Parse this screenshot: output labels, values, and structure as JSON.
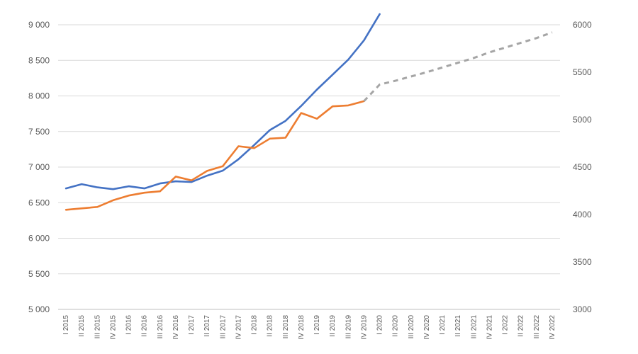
{
  "chart_data": {
    "type": "line",
    "title": "",
    "categories": [
      "I 2015",
      "II 2015",
      "III 2015",
      "IV 2015",
      "I 2016",
      "II 2016",
      "III 2016",
      "IV 2016",
      "I 2017",
      "II 2017",
      "III 2017",
      "IV 2017",
      "I 2018",
      "II 2018",
      "III 2018",
      "IV 2018",
      "I 2019",
      "II 2019",
      "III 2019",
      "IV 2019",
      "I 2020",
      "II 2020",
      "III 2020",
      "IV 2020",
      "I 2021",
      "II 2021",
      "III 2021",
      "IV 2021",
      "I 2022",
      "II 2022",
      "III 2022",
      "IV 2022"
    ],
    "y_left": {
      "ylim": [
        5000,
        9000
      ],
      "ticks": [
        5000,
        5500,
        6000,
        6500,
        7000,
        7500,
        8000,
        8500,
        9000
      ],
      "tick_labels": [
        "5 000",
        "5 500",
        "6 000",
        "6 500",
        "7 000",
        "7 500",
        "8 000",
        "8 500",
        "9 000"
      ]
    },
    "y_right": {
      "ylim": [
        3000,
        6000
      ],
      "ticks": [
        3000,
        3500,
        4000,
        4500,
        5000,
        5500,
        6000
      ],
      "tick_labels": [
        "3000",
        "3500",
        "4000",
        "4500",
        "5000",
        "5500",
        "6000"
      ]
    },
    "series": [
      {
        "axis": "left",
        "color": "#4472c4",
        "style": "solid",
        "values": [
          6700,
          6760,
          6715,
          6690,
          6730,
          6700,
          6770,
          6800,
          6790,
          6880,
          6950,
          7110,
          7310,
          7520,
          7650,
          7860,
          8090,
          8300,
          8510,
          8780,
          9150,
          null,
          null,
          null,
          null,
          null,
          null,
          null,
          null,
          null,
          null,
          null
        ]
      },
      {
        "axis": "right",
        "color": "#ed7d31",
        "style": "solid",
        "values": [
          4050,
          4065,
          4080,
          4150,
          4200,
          4230,
          4245,
          4400,
          4360,
          4460,
          4510,
          4720,
          4700,
          4800,
          4810,
          5070,
          5010,
          5140,
          5150,
          5195,
          null,
          null,
          null,
          null,
          null,
          null,
          null,
          null,
          null,
          null,
          null,
          null
        ]
      },
      {
        "axis": "right",
        "color": "#a5a5a5",
        "style": "dashed",
        "values": [
          null,
          null,
          null,
          null,
          null,
          null,
          null,
          null,
          null,
          null,
          null,
          null,
          null,
          null,
          null,
          null,
          null,
          null,
          null,
          5195,
          5370,
          5410,
          5455,
          5500,
          5550,
          5600,
          5650,
          5710,
          5760,
          5810,
          5860,
          5920
        ]
      }
    ],
    "grid": true,
    "legend": "none"
  }
}
